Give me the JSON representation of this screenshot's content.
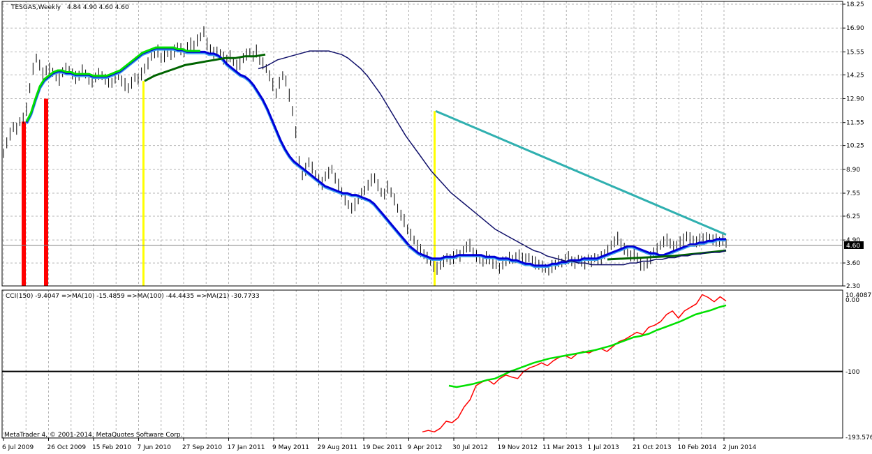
{
  "window": {
    "title": "TESGAS,Weekly",
    "ohlc": "4.84 4.90 4.60 4.60",
    "last_price_label": "4.60",
    "copyright": "MetaTrader 4, © 2001-2014, MetaQuotes Software Corp."
  },
  "indicator_panel": {
    "legend": "CCI(150) -9.4047 =>MA(10) -15.4859 =>MA(100) -44.4435 =>MA(21) -30.7733",
    "y_top_label": "10.4087",
    "y_zero_label": "0.00",
    "y_minus100_label": "-100",
    "y_bottom_label": "-193.576"
  },
  "colors": {
    "grid": "#b4b4b4",
    "price_bars": "#000000",
    "ma_fast_up": "#00e000",
    "ma_fast_down": "#ff0000",
    "ma_mid_dark": "#006400",
    "ma_blue": "#0000d8",
    "ma_lightblue": "#3fa0f0",
    "ma_navy": "#10106a",
    "trend_teal": "#30b0b0",
    "signal_red": "#ff0000",
    "signal_yellow": "#ffff00",
    "cci": "#ff0000",
    "cci_ma": "#00e000"
  },
  "chart_data": [
    {
      "type": "line",
      "title": "TESGAS,Weekly",
      "x_ticks": [
        "6 Jul 2009",
        "26 Oct 2009",
        "15 Feb 2010",
        "7 Jun 2010",
        "27 Sep 2010",
        "17 Jan 2011",
        "9 May 2011",
        "29 Aug 2011",
        "19 Dec 2011",
        "9 Apr 2012",
        "30 Jul 2012",
        "19 Nov 2012",
        "11 Mar 2013",
        "1 Jul 2013",
        "21 Oct 2013",
        "10 Feb 2014",
        "2 Jun 2014"
      ],
      "y_ticks": [
        18.25,
        16.9,
        15.55,
        14.25,
        12.9,
        11.55,
        10.25,
        8.9,
        7.55,
        6.25,
        4.9,
        3.6,
        2.3
      ],
      "ylim": [
        2.3,
        18.25
      ],
      "grid": true,
      "series": [
        {
          "values": [
            9.8,
            10.4,
            10.9,
            11.3,
            11.2,
            11.6,
            11.8,
            12.3,
            13.5,
            14.6,
            15.2,
            14.8,
            14.3,
            14.5,
            14.6,
            14.4,
            14.2,
            14.0,
            14.4,
            14.6,
            14.5,
            14.3,
            14.1,
            14.2,
            14.5,
            14.3,
            14.0,
            13.9,
            14.1,
            14.3,
            14.2,
            14.0,
            13.9,
            13.8,
            14.1,
            14.2,
            13.9,
            13.7,
            13.5,
            13.8,
            14.1,
            14.0,
            14.3,
            14.6,
            14.9,
            15.3,
            15.5,
            15.6,
            15.2,
            15.3,
            15.5,
            15.4,
            15.6,
            15.8,
            15.7,
            15.5,
            15.8,
            16.0,
            15.9,
            16.2,
            16.4,
            16.7,
            16.0,
            15.7,
            15.5,
            15.6,
            15.4,
            15.2,
            15.1,
            15.3,
            15.0,
            14.8,
            14.9,
            15.2,
            15.4,
            15.5,
            15.3,
            15.6,
            15.1,
            14.9,
            14.6,
            14.2,
            13.7,
            13.2,
            13.8,
            14.2,
            13.9,
            13.1,
            12.2,
            11.0,
            9.4,
            8.6,
            8.9,
            9.3,
            9.0,
            8.6,
            8.3,
            8.1,
            8.5,
            8.7,
            8.9,
            8.4,
            8.0,
            7.6,
            7.2,
            6.9,
            6.7,
            6.9,
            7.2,
            7.5,
            7.7,
            8.0,
            8.3,
            8.4,
            8.0,
            7.6,
            7.5,
            7.9,
            7.6,
            7.2,
            6.7,
            6.3,
            6.0,
            5.5,
            5.2,
            4.9,
            4.6,
            4.3,
            4.1,
            3.9,
            3.7,
            3.4,
            3.3,
            3.5,
            3.7,
            3.9,
            3.8,
            3.9,
            4.1,
            4.0,
            4.3,
            4.5,
            4.6,
            4.2,
            4.0,
            3.8,
            3.7,
            3.9,
            3.8,
            3.6,
            3.5,
            3.3,
            3.6,
            3.7,
            3.9,
            3.8,
            3.9,
            4.0,
            3.9,
            3.8,
            3.9,
            3.7,
            3.6,
            3.5,
            3.4,
            3.3,
            3.2,
            3.4,
            3.5,
            3.7,
            3.6,
            3.8,
            3.9,
            3.7,
            3.6,
            3.8,
            3.7,
            3.6,
            3.8,
            3.7,
            3.9,
            3.8,
            3.9,
            4.1,
            4.3,
            4.6,
            4.8,
            5.0,
            4.7,
            4.4,
            4.2,
            4.0,
            4.1,
            3.9,
            3.5,
            3.4,
            3.6,
            3.9,
            4.2,
            4.4,
            4.6,
            4.8,
            4.9,
            4.7,
            4.5,
            4.6,
            4.8,
            4.9,
            5.1,
            5.0,
            4.9,
            4.8,
            4.9,
            5.0,
            5.0,
            5.0,
            4.9,
            4.9,
            4.8,
            4.9,
            4.7
          ]
        },
        {
          "values": [
            11.5,
            12.0,
            12.8,
            13.5,
            13.9,
            14.1,
            14.3,
            14.4,
            14.4,
            14.3,
            14.3,
            14.2,
            14.2,
            14.2,
            14.2,
            14.1,
            14.1,
            14.1,
            14.1,
            14.2,
            14.3,
            14.4,
            14.6,
            14.8,
            15.0,
            15.2,
            15.4,
            15.5,
            15.6,
            15.7,
            15.7,
            15.7,
            15.7,
            15.7,
            15.6,
            15.6,
            15.5,
            15.5,
            15.5,
            15.5,
            15.5,
            15.4,
            15.4,
            15.3,
            15.1,
            14.8,
            14.6,
            14.4,
            14.2,
            14.1,
            13.9,
            13.6,
            13.2,
            12.8,
            12.3,
            11.7,
            11.1,
            10.5,
            10.0,
            9.6,
            9.3,
            9.1,
            8.9,
            8.7,
            8.5,
            8.3,
            8.1,
            7.9,
            7.8,
            7.7,
            7.6,
            7.5,
            7.5,
            7.4,
            7.4,
            7.3,
            7.2,
            7.1,
            6.9,
            6.6,
            6.3,
            6.0,
            5.7,
            5.4,
            5.1,
            4.8,
            4.5,
            4.3,
            4.1,
            4.0,
            3.9,
            3.8,
            3.8,
            3.8,
            3.9,
            3.9,
            3.9,
            4.0,
            4.0,
            4.0,
            4.0,
            4.0,
            4.0,
            3.9,
            3.9,
            3.9,
            3.8,
            3.8,
            3.8,
            3.7,
            3.7,
            3.6,
            3.5,
            3.5,
            3.4,
            3.4,
            3.4,
            3.4,
            3.5,
            3.5,
            3.6,
            3.6,
            3.7,
            3.7,
            3.7,
            3.8,
            3.8,
            3.8,
            3.8,
            3.9,
            4.0,
            4.1,
            4.2,
            4.3,
            4.4,
            4.5,
            4.5,
            4.4,
            4.3,
            4.2,
            4.1,
            4.1,
            4.0,
            4.0,
            4.1,
            4.2,
            4.3,
            4.4,
            4.5,
            4.6,
            4.6,
            4.7,
            4.7,
            4.8,
            4.8,
            4.9,
            4.9,
            4.9
          ]
        },
        {
          "values": [
            14.6,
            14.7,
            14.9,
            15.1,
            15.2,
            15.3,
            15.4,
            15.5,
            15.6,
            15.6,
            15.6,
            15.6,
            15.5,
            15.4,
            15.2,
            14.9,
            14.6,
            14.2,
            13.7,
            13.2,
            12.6,
            12.0,
            11.4,
            10.8,
            10.3,
            9.8,
            9.3,
            8.8,
            8.4,
            8.0,
            7.6,
            7.3,
            7.0,
            6.7,
            6.4,
            6.1,
            5.8,
            5.5,
            5.3,
            5.1,
            4.9,
            4.7,
            4.5,
            4.3,
            4.2,
            4.0,
            3.9,
            3.8,
            3.7,
            3.7,
            3.6,
            3.6,
            3.5,
            3.5,
            3.5,
            3.5,
            3.5,
            3.5,
            3.6,
            3.6,
            3.7,
            3.7,
            3.8,
            3.8,
            3.9,
            3.9,
            4.0,
            4.0,
            4.1,
            4.1,
            4.2,
            4.2,
            4.2,
            4.3
          ]
        },
        {
          "values": [
            12.2,
            9.5,
            6.5,
            5.2
          ]
        }
      ]
    },
    {
      "type": "line",
      "title": "CCI(150) -9.4047 =>MA(10) -15.4859 =>MA(100) -44.4435 =>MA(21) -30.7733",
      "y_ticks": [
        10.4087,
        0.0,
        -100,
        -193.576
      ],
      "ylim": [
        -193.576,
        10.4087
      ],
      "grid": true,
      "series": [
        {
          "values": [
            -185,
            -183,
            -185,
            -180,
            -170,
            -172,
            -165,
            -150,
            -140,
            -120,
            -115,
            -112,
            -118,
            -110,
            -105,
            -108,
            -110,
            -100,
            -95,
            -92,
            -88,
            -92,
            -85,
            -80,
            -78,
            -82,
            -75,
            -72,
            -74,
            -70,
            -68,
            -72,
            -65,
            -58,
            -55,
            -50,
            -45,
            -48,
            -38,
            -35,
            -30,
            -20,
            -15,
            -25,
            -15,
            -10,
            -5,
            8,
            4,
            -2,
            5,
            -1
          ]
        },
        {
          "values": [
            -120,
            -122,
            -120,
            -118,
            -115,
            -112,
            -110,
            -105,
            -100,
            -96,
            -92,
            -88,
            -85,
            -82,
            -80,
            -78,
            -76,
            -74,
            -72,
            -70,
            -67,
            -64,
            -60,
            -56,
            -52,
            -50,
            -47,
            -42,
            -38,
            -34,
            -30,
            -25,
            -20,
            -17,
            -14,
            -10,
            -7
          ]
        }
      ]
    }
  ]
}
